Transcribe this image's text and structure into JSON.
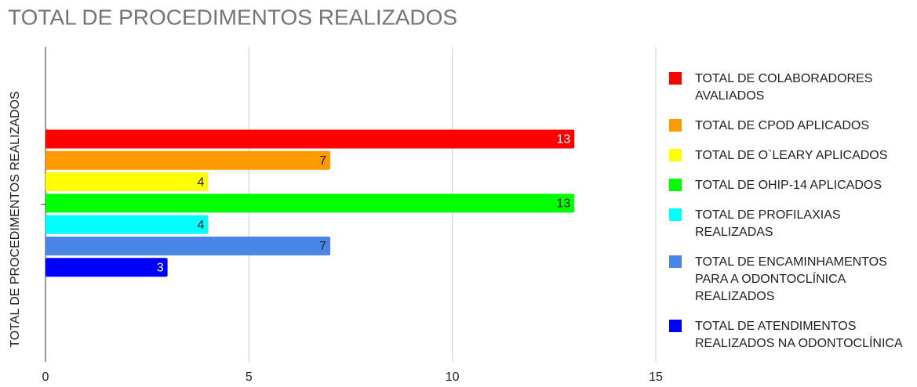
{
  "chart_data": {
    "type": "bar",
    "orientation": "horizontal",
    "title": "TOTAL DE PROCEDIMENTOS REALIZADOS",
    "y_label": "TOTAL DE PROCEDIMENTOS REALIZADOS",
    "categories": [
      null
    ],
    "series": [
      {
        "name": "TOTAL DE COLABORADORES AVALIADOS",
        "color": "#ff0000",
        "values": [
          13
        ]
      },
      {
        "name": "TOTAL DE CPOD APLICADOS",
        "color": "#ff9900",
        "values": [
          7
        ]
      },
      {
        "name": "TOTAL DE O`LEARY APLICADOS",
        "color": "#ffff00",
        "values": [
          4
        ]
      },
      {
        "name": "TOTAL DE OHIP-14 APLICADOS",
        "color": "#00ff00",
        "values": [
          13
        ]
      },
      {
        "name": "TOTAL DE PROFILAXIAS REALIZADAS",
        "color": "#00ffff",
        "values": [
          4
        ]
      },
      {
        "name": "TOTAL DE ENCAMINHAMENTOS PARA A ODONTOCLÍNICA REALIZADOS",
        "color": "#4a86e8",
        "values": [
          7
        ]
      },
      {
        "name": "TOTAL DE ATENDIMENTOS REALIZADOS NA ODONTOCLÍNICA",
        "color": "#0000ff",
        "values": [
          3
        ]
      }
    ],
    "xlim": [
      0,
      15
    ],
    "xticks": [
      0,
      5,
      10,
      15
    ],
    "grid": true,
    "legend": "right"
  }
}
